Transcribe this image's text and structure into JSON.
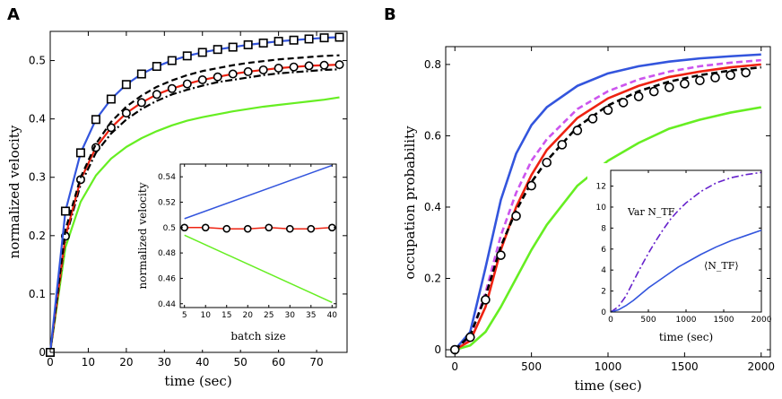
{
  "chart_data": [
    {
      "panel": "A",
      "type": "line",
      "xlabel": "time (sec)",
      "ylabel": "normalized velocity",
      "xlim": [
        0,
        78
      ],
      "ylim": [
        0,
        0.55
      ],
      "xticks": [
        "0",
        "10",
        "20",
        "30",
        "40",
        "50",
        "60",
        "70"
      ],
      "yticks": [
        "0",
        "0.1",
        "0.2",
        "0.3",
        "0.4",
        "0.5"
      ],
      "series": [
        {
          "name": "blue",
          "color": "#3355dd",
          "style": "solid",
          "marker": "square",
          "x": [
            0,
            4,
            8,
            12,
            16,
            20,
            24,
            28,
            32,
            36,
            40,
            44,
            48,
            52,
            56,
            60,
            64,
            68,
            72,
            76
          ],
          "y": [
            0,
            0.242,
            0.342,
            0.399,
            0.434,
            0.459,
            0.477,
            0.49,
            0.5,
            0.508,
            0.514,
            0.519,
            0.523,
            0.527,
            0.53,
            0.533,
            0.535,
            0.537,
            0.539,
            0.54
          ]
        },
        {
          "name": "black-dashed",
          "color": "#000000",
          "style": "dashed",
          "x": [
            0,
            4,
            8,
            12,
            16,
            20,
            24,
            28,
            32,
            36,
            40,
            44,
            48,
            52,
            56,
            60,
            64,
            68,
            72,
            76
          ],
          "y": [
            0,
            0.21,
            0.3,
            0.357,
            0.395,
            0.421,
            0.44,
            0.455,
            0.466,
            0.475,
            0.482,
            0.487,
            0.492,
            0.496,
            0.499,
            0.502,
            0.504,
            0.506,
            0.508,
            0.509
          ]
        },
        {
          "name": "red",
          "color": "#ee2211",
          "style": "solid",
          "marker": "circle",
          "x": [
            0,
            4,
            8,
            12,
            16,
            20,
            24,
            28,
            32,
            36,
            40,
            44,
            48,
            52,
            56,
            60,
            64,
            68,
            72,
            76
          ],
          "y": [
            0,
            0.199,
            0.296,
            0.351,
            0.385,
            0.41,
            0.428,
            0.442,
            0.452,
            0.46,
            0.467,
            0.472,
            0.477,
            0.481,
            0.484,
            0.487,
            0.489,
            0.491,
            0.492,
            0.493
          ]
        },
        {
          "name": "black-dashdot",
          "color": "#000000",
          "style": "dashdot",
          "x": [
            0,
            4,
            8,
            12,
            16,
            20,
            24,
            28,
            32,
            36,
            40,
            44,
            48,
            52,
            56,
            60,
            64,
            68,
            72,
            76
          ],
          "y": [
            0,
            0.195,
            0.288,
            0.342,
            0.375,
            0.399,
            0.417,
            0.431,
            0.442,
            0.45,
            0.457,
            0.463,
            0.467,
            0.471,
            0.475,
            0.478,
            0.48,
            0.482,
            0.484,
            0.485
          ]
        },
        {
          "name": "green",
          "color": "#66ee22",
          "style": "solid",
          "x": [
            0,
            4,
            8,
            12,
            16,
            20,
            24,
            28,
            32,
            36,
            40,
            44,
            48,
            52,
            56,
            60,
            64,
            68,
            72,
            76
          ],
          "y": [
            0,
            0.18,
            0.258,
            0.303,
            0.332,
            0.352,
            0.367,
            0.379,
            0.389,
            0.397,
            0.403,
            0.408,
            0.413,
            0.417,
            0.421,
            0.424,
            0.427,
            0.43,
            0.433,
            0.437
          ]
        }
      ],
      "inset": {
        "xlabel": "batch size",
        "ylabel": "normalized velocity",
        "xlim": [
          4,
          41
        ],
        "ylim": [
          0.437,
          0.55
        ],
        "xticks": [
          "5",
          "10",
          "15",
          "20",
          "25",
          "30",
          "35",
          "40"
        ],
        "yticks": [
          "0.44",
          "0.46",
          "0.48",
          "0.5",
          "0.52",
          "0.54"
        ],
        "series": [
          {
            "name": "blue",
            "color": "#3355dd",
            "x": [
              5,
              40
            ],
            "y": [
              0.507,
              0.549
            ]
          },
          {
            "name": "red",
            "color": "#ee2211",
            "marker": "circle",
            "x": [
              5,
              10,
              15,
              20,
              25,
              30,
              35,
              40
            ],
            "y": [
              0.5,
              0.5,
              0.499,
              0.499,
              0.5,
              0.499,
              0.499,
              0.5
            ]
          },
          {
            "name": "green",
            "color": "#66ee22",
            "x": [
              5,
              40
            ],
            "y": [
              0.494,
              0.441
            ]
          }
        ]
      }
    },
    {
      "panel": "B",
      "type": "line",
      "xlabel": "time (sec)",
      "ylabel": "occupation probability",
      "xlim": [
        -60,
        2060
      ],
      "ylim": [
        -0.02,
        0.85
      ],
      "xticks": [
        "0",
        "500",
        "1000",
        "1500",
        "2000"
      ],
      "yticks": [
        "0",
        "0.2",
        "0.4",
        "0.6",
        "0.8"
      ],
      "series": [
        {
          "name": "blue",
          "color": "#3355dd",
          "style": "solid",
          "x": [
            0,
            100,
            200,
            300,
            400,
            500,
            600,
            800,
            1000,
            1200,
            1400,
            1600,
            1800,
            2000
          ],
          "y": [
            0,
            0.05,
            0.23,
            0.42,
            0.55,
            0.63,
            0.68,
            0.74,
            0.775,
            0.795,
            0.808,
            0.817,
            0.823,
            0.828
          ]
        },
        {
          "name": "purple-dashed",
          "color": "#cc55ee",
          "style": "dashed",
          "x": [
            0,
            100,
            200,
            300,
            400,
            500,
            600,
            800,
            1000,
            1200,
            1400,
            1600,
            1800,
            2000
          ],
          "y": [
            0,
            0.035,
            0.16,
            0.32,
            0.44,
            0.53,
            0.59,
            0.675,
            0.725,
            0.758,
            0.78,
            0.795,
            0.805,
            0.812
          ]
        },
        {
          "name": "red",
          "color": "#ee2211",
          "style": "solid",
          "x": [
            0,
            100,
            200,
            300,
            400,
            500,
            600,
            800,
            1000,
            1200,
            1400,
            1600,
            1800,
            2000
          ],
          "y": [
            0,
            0.025,
            0.12,
            0.28,
            0.4,
            0.49,
            0.56,
            0.65,
            0.705,
            0.74,
            0.765,
            0.78,
            0.792,
            0.8
          ]
        },
        {
          "name": "black-dashed",
          "color": "#000000",
          "style": "dashed",
          "x": [
            0,
            100,
            200,
            300,
            400,
            500,
            600,
            800,
            1000,
            1200,
            1400,
            1600,
            1800,
            2000
          ],
          "y": [
            0,
            0.04,
            0.15,
            0.29,
            0.39,
            0.47,
            0.53,
            0.625,
            0.685,
            0.725,
            0.752,
            0.77,
            0.783,
            0.792
          ]
        },
        {
          "name": "circles",
          "color": "#000000",
          "style": "none",
          "marker": "circle",
          "x": [
            0,
            100,
            200,
            300,
            400,
            500,
            600,
            700,
            800,
            900,
            1000,
            1100,
            1200,
            1300,
            1400,
            1500,
            1600,
            1700,
            1800,
            1900
          ],
          "y": [
            0,
            0.035,
            0.14,
            0.265,
            0.375,
            0.46,
            0.525,
            0.575,
            0.615,
            0.648,
            0.672,
            0.693,
            0.71,
            0.724,
            0.736,
            0.746,
            0.755,
            0.763,
            0.77,
            0.777
          ]
        },
        {
          "name": "green",
          "color": "#66ee22",
          "style": "solid",
          "x": [
            0,
            100,
            200,
            300,
            400,
            500,
            600,
            800,
            1000,
            1200,
            1400,
            1600,
            1800,
            2000
          ],
          "y": [
            0,
            0.012,
            0.05,
            0.12,
            0.2,
            0.28,
            0.35,
            0.46,
            0.53,
            0.58,
            0.62,
            0.645,
            0.665,
            0.68
          ]
        }
      ],
      "inset": {
        "xlabel": "time (sec)",
        "xlim": [
          0,
          2000
        ],
        "ylim": [
          0,
          13.5
        ],
        "xticks": [
          "0",
          "500",
          "1000",
          "1500",
          "2000"
        ],
        "yticks": [
          "0",
          "2",
          "4",
          "6",
          "8",
          "10",
          "12"
        ],
        "annotations": [
          "Var N_TF",
          "⟨N_TF⟩"
        ],
        "series": [
          {
            "name": "Var N_TF",
            "color": "#6622cc",
            "style": "dashdot",
            "x": [
              0,
              100,
              200,
              300,
              400,
              500,
              600,
              700,
              800,
              900,
              1000,
              1200,
              1400,
              1600,
              1800,
              2000
            ],
            "y": [
              0,
              0.5,
              1.5,
              2.9,
              4.3,
              5.6,
              6.8,
              7.9,
              8.9,
              9.7,
              10.4,
              11.5,
              12.3,
              12.8,
              13.1,
              13.3
            ]
          },
          {
            "name": "⟨N_TF⟩",
            "color": "#3355dd",
            "style": "solid",
            "x": [
              0,
              100,
              200,
              300,
              400,
              500,
              600,
              700,
              800,
              900,
              1000,
              1200,
              1400,
              1600,
              1800,
              2000
            ],
            "y": [
              0,
              0.2,
              0.6,
              1.1,
              1.7,
              2.3,
              2.8,
              3.3,
              3.8,
              4.3,
              4.7,
              5.5,
              6.2,
              6.8,
              7.3,
              7.8
            ]
          }
        ]
      }
    }
  ]
}
